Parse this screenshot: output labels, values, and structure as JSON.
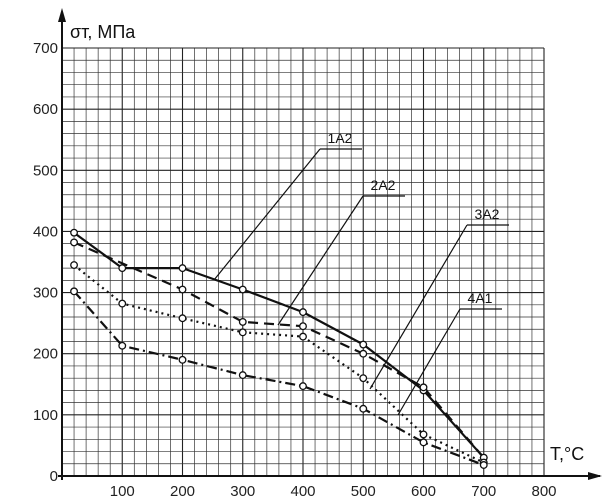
{
  "chart_data": {
    "type": "line",
    "title": "",
    "xlabel": "T,°C",
    "ylabel": "σт, МПа",
    "xlim": [
      0,
      800
    ],
    "ylim": [
      0,
      700
    ],
    "x_ticks": [
      "100",
      "200",
      "300",
      "400",
      "500",
      "600",
      "700",
      "800"
    ],
    "y_ticks": [
      "0",
      "100",
      "200",
      "300",
      "400",
      "500",
      "600",
      "700"
    ],
    "grid": true,
    "series": [
      {
        "name": "1А2",
        "style": "solid",
        "x": [
          20,
          100,
          200,
          300,
          400,
          500,
          600,
          700
        ],
        "y": [
          398,
          340,
          340,
          305,
          268,
          215,
          140,
          30
        ]
      },
      {
        "name": "2А2",
        "style": "dash",
        "x": [
          20,
          200,
          300,
          400,
          500,
          600,
          700
        ],
        "y": [
          382,
          305,
          252,
          245,
          200,
          145,
          30
        ]
      },
      {
        "name": "3А2",
        "style": "dot",
        "x": [
          20,
          100,
          200,
          300,
          400,
          500,
          600,
          700
        ],
        "y": [
          345,
          282,
          258,
          235,
          228,
          160,
          68,
          22
        ]
      },
      {
        "name": "4А1",
        "style": "dashdot",
        "x": [
          20,
          100,
          200,
          300,
          400,
          500,
          600,
          700
        ],
        "y": [
          302,
          213,
          190,
          165,
          147,
          110,
          55,
          18
        ]
      }
    ]
  }
}
